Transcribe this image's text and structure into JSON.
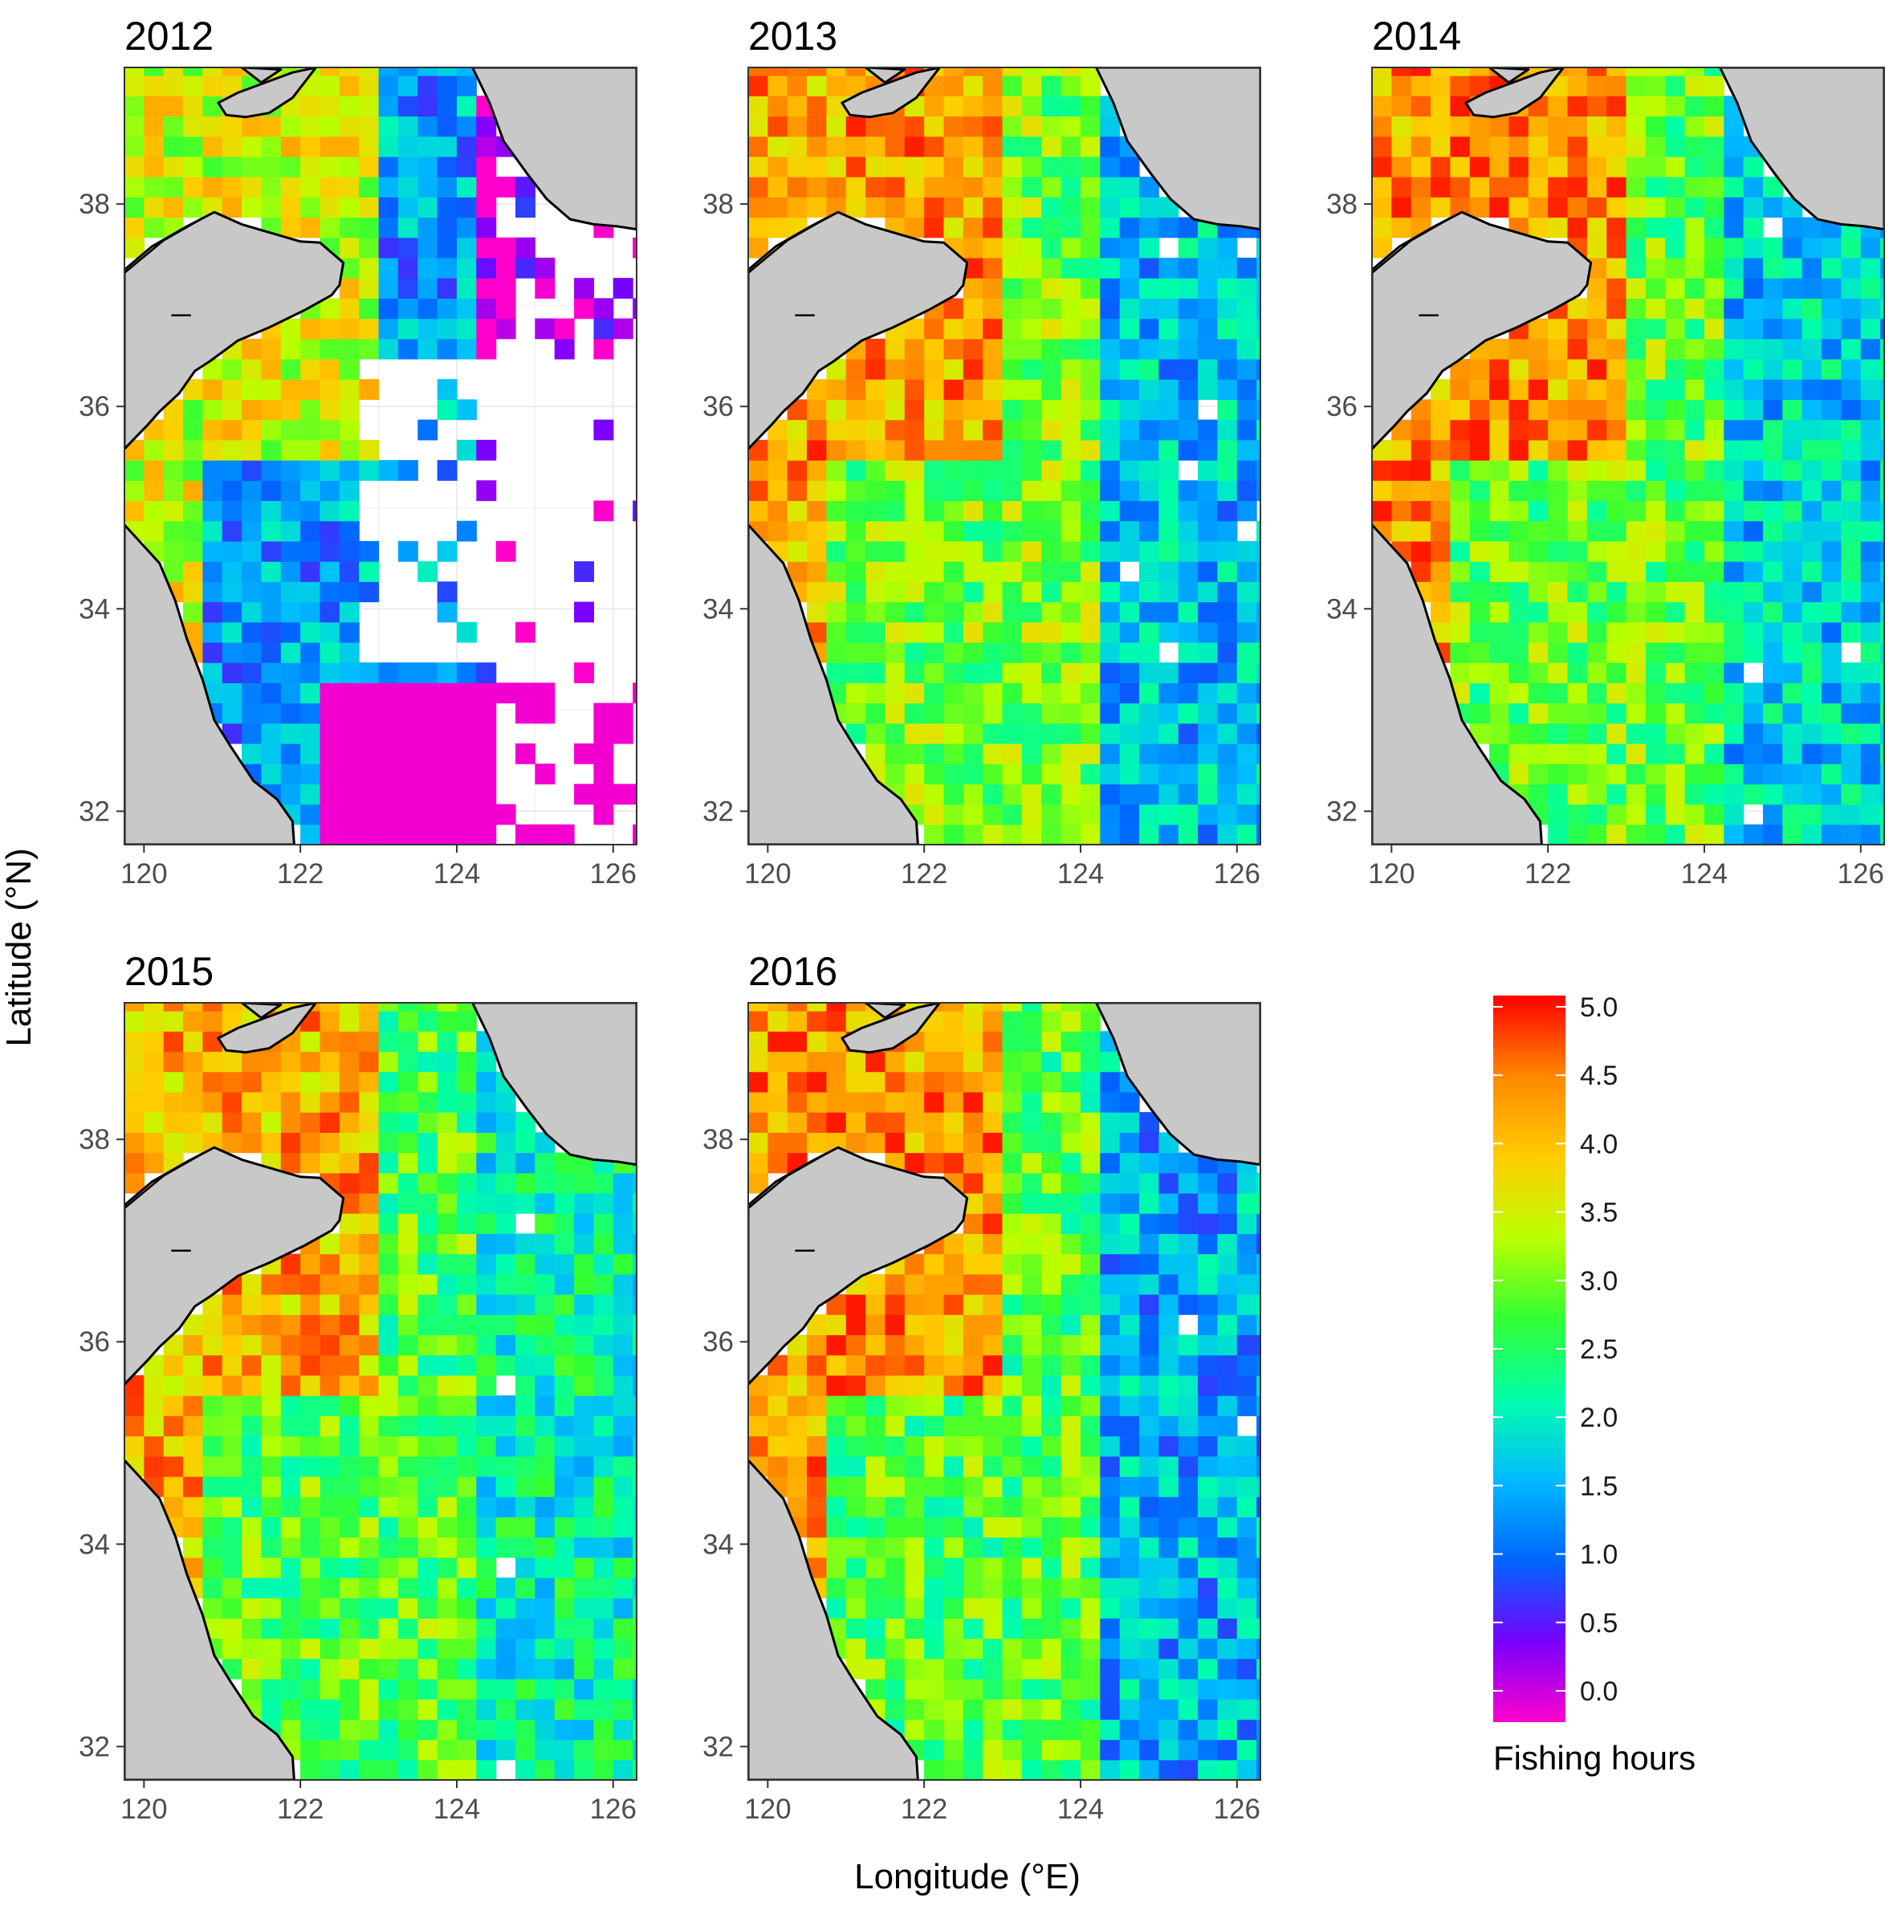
{
  "chart_data": {
    "type": "heatmap",
    "figure": {
      "xlabel": "Longitude (°E)",
      "ylabel": "Latitude (°N)"
    },
    "axes": {
      "xlim": [
        119.75,
        126.3
      ],
      "ylim": [
        31.67,
        39.35
      ],
      "xticks": [
        "120",
        "122",
        "124",
        "126"
      ],
      "yticks": [
        "32",
        "34",
        "36",
        "38"
      ],
      "grid": true
    },
    "cell_size_deg": {
      "lon": 0.25,
      "lat": 0.2
    },
    "colorbar": {
      "title": "Fishing hours",
      "ticks": [
        "0.0",
        "0.5",
        "1.0",
        "1.5",
        "2.0",
        "2.5",
        "3.0",
        "3.5",
        "4.0",
        "4.5",
        "5.0"
      ],
      "range": [
        0,
        5
      ],
      "stops": [
        "#ff00cc",
        "#7700ff",
        "#0066ff",
        "#00bbff",
        "#00ffaa",
        "#33ff33",
        "#bbff00",
        "#ffcc00",
        "#ff8800",
        "#ff0000"
      ]
    },
    "colors": {
      "land": "#c8c8c8",
      "coast": "#000000",
      "panel_border": "#333333",
      "grid": "#ebebeb"
    },
    "panels": [
      {
        "title": "2012",
        "summary": {
          "coastal_band_mean": 3.5,
          "central_mean": 1.5,
          "eastern_mean": 0.3,
          "eastern_coverage": 0.35
        }
      },
      {
        "title": "2013",
        "summary": {
          "coastal_band_mean": 4.2,
          "central_mean": 3.0,
          "eastern_mean": 1.7,
          "eastern_coverage": 0.97
        }
      },
      {
        "title": "2014",
        "summary": {
          "coastal_band_mean": 4.3,
          "central_mean": 2.9,
          "eastern_mean": 1.8,
          "eastern_coverage": 0.98
        }
      },
      {
        "title": "2015",
        "summary": {
          "coastal_band_mean": 4.1,
          "central_mean": 2.8,
          "eastern_mean": 2.2,
          "eastern_coverage": 0.99
        }
      },
      {
        "title": "2016",
        "summary": {
          "coastal_band_mean": 4.3,
          "central_mean": 2.8,
          "eastern_mean": 1.6,
          "eastern_coverage": 0.99
        }
      }
    ]
  }
}
